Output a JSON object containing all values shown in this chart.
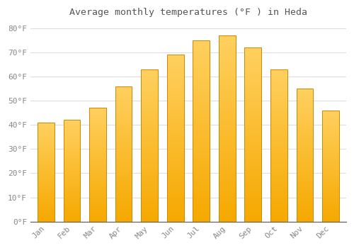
{
  "title": "Average monthly temperatures (°F ) in Heda",
  "months": [
    "Jan",
    "Feb",
    "Mar",
    "Apr",
    "May",
    "Jun",
    "Jul",
    "Aug",
    "Sep",
    "Oct",
    "Nov",
    "Dec"
  ],
  "values": [
    41,
    42,
    47,
    56,
    63,
    69,
    75,
    77,
    72,
    63,
    55,
    46
  ],
  "bar_color_bottom": "#F5A800",
  "bar_color_top": "#FFD060",
  "bar_edge_color": "#CC8800",
  "ylim": [
    0,
    83
  ],
  "yticks": [
    0,
    10,
    20,
    30,
    40,
    50,
    60,
    70,
    80
  ],
  "ytick_labels": [
    "0°F",
    "10°F",
    "20°F",
    "30°F",
    "40°F",
    "50°F",
    "60°F",
    "70°F",
    "80°F"
  ],
  "background_color": "#FFFFFF",
  "plot_bg_color": "#FFFFFF",
  "grid_color": "#DDDDDD",
  "title_fontsize": 9.5,
  "tick_fontsize": 8,
  "title_font_color": "#555555"
}
